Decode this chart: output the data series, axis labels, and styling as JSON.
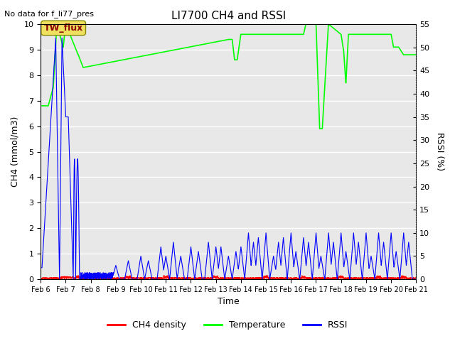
{
  "title": "LI7700 CH4 and RSSI",
  "top_left_text": "No data for f_li77_pres",
  "annotation_text": "TW_flux",
  "xlabel": "Time",
  "ylabel_left": "CH4 (mmol/m3)",
  "ylabel_right": "RSSI (%)",
  "ylim_left": [
    0.0,
    10.0
  ],
  "ylim_right": [
    0,
    55
  ],
  "yticks_left": [
    0.0,
    1.0,
    2.0,
    3.0,
    4.0,
    5.0,
    6.0,
    7.0,
    8.0,
    9.0,
    10.0
  ],
  "yticks_right": [
    0,
    5,
    10,
    15,
    20,
    25,
    30,
    35,
    40,
    45,
    50,
    55
  ],
  "ch4_color": "#ff0000",
  "temp_color": "#00ff00",
  "rssi_color": "#0000ff",
  "background_color": "#e8e8e8",
  "plot_bg_color": "#e8e8e8",
  "legend_labels": [
    "CH4 density",
    "Temperature",
    "RSSI"
  ],
  "legend_colors": [
    "#ff0000",
    "#00ff00",
    "#0000ff"
  ],
  "figsize": [
    6.4,
    4.8
  ],
  "dpi": 100
}
